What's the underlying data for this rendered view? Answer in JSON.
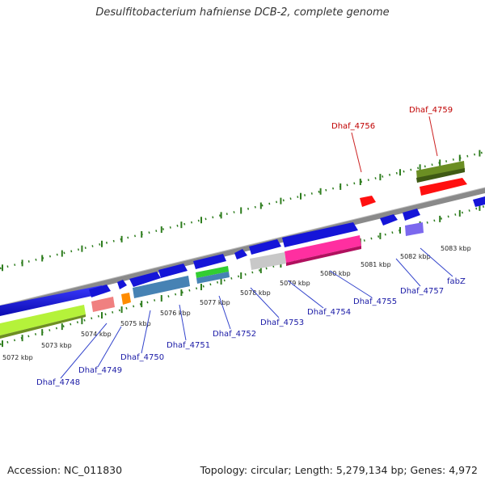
{
  "title": "Desulfitobacterium hafniense DCB-2, complete genome",
  "footer": {
    "accession": "Accession: NC_011830",
    "summary": "Topology: circular; Length: 5,279,134 bp; Genes: 4,972"
  },
  "colors": {
    "backbone": "#808080",
    "tick": "#2e7d1e",
    "label_blue": "#1a1aa6",
    "label_red": "#c00000",
    "leader": "#3344cc",
    "leader_red": "#cc2222"
  },
  "scale_labels": [
    "5072 kbp",
    "5073 kbp",
    "5074 kbp",
    "5075 kbp",
    "5076 kbp",
    "5077 kbp",
    "5078 kbp",
    "5079 kbp",
    "5080 kbp",
    "5081 kbp",
    "5082 kbp",
    "5083 kbp"
  ],
  "gene_labels_below": [
    {
      "text": "Dhaf_4748",
      "color": "blue"
    },
    {
      "text": "Dhaf_4749",
      "color": "blue"
    },
    {
      "text": "Dhaf_4750",
      "color": "blue"
    },
    {
      "text": "Dhaf_4751",
      "color": "blue"
    },
    {
      "text": "Dhaf_4752",
      "color": "blue"
    },
    {
      "text": "Dhaf_4753",
      "color": "blue"
    },
    {
      "text": "Dhaf_4754",
      "color": "blue"
    },
    {
      "text": "Dhaf_4755",
      "color": "blue"
    },
    {
      "text": "Dhaf_4757",
      "color": "blue"
    },
    {
      "text": "fabZ",
      "color": "blue"
    }
  ],
  "gene_labels_above": [
    {
      "text": "Dhaf_4756",
      "color": "red"
    },
    {
      "text": "Dhaf_4759",
      "color": "red"
    }
  ],
  "features": [
    {
      "name": "Dhaf_4748",
      "color": "#1515d8",
      "strand": "plus-cds"
    },
    {
      "name": "Dhaf_4748-orf",
      "color": "#b5f23a",
      "strand": "plus-orf"
    },
    {
      "name": "Dhaf_4749",
      "color": "#f08080",
      "strand": "plus-orf"
    },
    {
      "name": "Dhaf_4750",
      "color": "#ff8c00",
      "strand": "plus-orf"
    },
    {
      "name": "Dhaf_4751",
      "color": "#4682b4",
      "strand": "plus-orf"
    },
    {
      "name": "Dhaf_4752",
      "color": "#32cd32",
      "strand": "plus-orf"
    },
    {
      "name": "Dhaf_4753",
      "color": "#c0c0c0",
      "strand": "plus-orf"
    },
    {
      "name": "Dhaf_4754",
      "color": "#ff2fa0",
      "strand": "plus-orf"
    },
    {
      "name": "Dhaf_4756",
      "color": "#ff1010",
      "strand": "minus"
    },
    {
      "name": "Dhaf_4757",
      "color": "#7b68ee",
      "strand": "plus-orf"
    },
    {
      "name": "Dhaf_4759",
      "color": "#6b8e23",
      "strand": "minus"
    }
  ]
}
